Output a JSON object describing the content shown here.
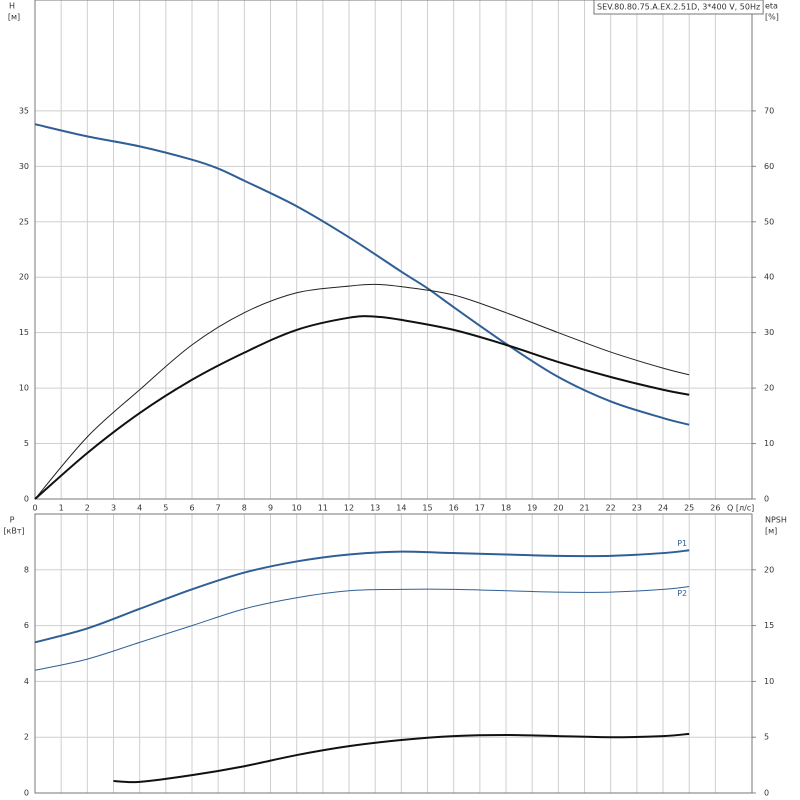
{
  "chart_data": [
    {
      "type": "line",
      "title": "SEV.80.80.75.A.EX.2.51D, 3*400 V, 50Hz",
      "ylabel": "H",
      "yunit": "[м]",
      "y2label": "eta",
      "y2unit": "[%]",
      "xlabel": "Q [л/с]",
      "xlim": [
        0,
        27.4
      ],
      "xticks": [
        0,
        1,
        2,
        3,
        4,
        5,
        6,
        7,
        8,
        9,
        10,
        11,
        12,
        13,
        14,
        15,
        16,
        17,
        18,
        19,
        20,
        21,
        22,
        23,
        24,
        25,
        26
      ],
      "ylim": [
        0,
        45
      ],
      "yticks": [
        0,
        5,
        10,
        15,
        20,
        25,
        30,
        35
      ],
      "y2lim": [
        0,
        90
      ],
      "y2ticks": [
        0,
        10,
        20,
        30,
        40,
        50,
        60,
        70
      ],
      "grid": true,
      "show_xtick_labels": true,
      "series": [
        {
          "color": "#2f5f96",
          "line_width": 2,
          "x": [
            0,
            2,
            4,
            6,
            7,
            8,
            10,
            12,
            14,
            15,
            16,
            18,
            20,
            22,
            24,
            25
          ],
          "values": [
            33.8,
            32.7,
            31.8,
            30.6,
            29.8,
            28.7,
            26.4,
            23.6,
            20.5,
            19,
            17.3,
            14,
            11,
            8.8,
            7.3,
            6.7
          ]
        },
        {
          "color": "#222222",
          "line_width": 1,
          "axis": "y2",
          "x": [
            0,
            2,
            4,
            6,
            8,
            10,
            12,
            13,
            14,
            16,
            18,
            20,
            22,
            24,
            25
          ],
          "values": [
            0,
            11.2,
            19.7,
            27.8,
            33.6,
            37.2,
            38.4,
            38.7,
            38.3,
            36.8,
            33.6,
            30,
            26.5,
            23.6,
            22.4
          ]
        },
        {
          "color": "#111111",
          "line_width": 2,
          "axis": "y2",
          "x": [
            0,
            2,
            4,
            6,
            8,
            10,
            12,
            13,
            14,
            16,
            18,
            20,
            22,
            24,
            25
          ],
          "values": [
            0,
            8.3,
            15.5,
            21.5,
            26.4,
            30.5,
            32.7,
            32.9,
            32.3,
            30.5,
            27.8,
            24.7,
            22,
            19.7,
            18.8
          ]
        }
      ]
    },
    {
      "type": "line",
      "ylabel": "P",
      "yunit": "[кВт]",
      "y2label": "NPSH",
      "y2unit": "[м]",
      "xlim": [
        0,
        27.4
      ],
      "xticks": [
        0,
        1,
        2,
        3,
        4,
        5,
        6,
        7,
        8,
        9,
        10,
        11,
        12,
        13,
        14,
        15,
        16,
        17,
        18,
        19,
        20,
        21,
        22,
        23,
        24,
        25,
        26
      ],
      "ylim": [
        0,
        10
      ],
      "yticks": [
        0,
        2,
        4,
        6,
        8
      ],
      "y2lim": [
        0,
        25
      ],
      "y2ticks": [
        0,
        5,
        10,
        15,
        20
      ],
      "grid": true,
      "show_xtick_labels": false,
      "series": [
        {
          "name": "P1",
          "color": "#2f5f96",
          "line_width": 2,
          "x": [
            0,
            2,
            4,
            6,
            8,
            10,
            12,
            14,
            16,
            18,
            20,
            22,
            24,
            25
          ],
          "values": [
            5.4,
            5.9,
            6.6,
            7.3,
            7.9,
            8.3,
            8.55,
            8.65,
            8.6,
            8.55,
            8.5,
            8.5,
            8.6,
            8.7
          ]
        },
        {
          "name": "P2",
          "color": "#2f5f96",
          "line_width": 1,
          "x": [
            0,
            2,
            4,
            6,
            8,
            10,
            12,
            14,
            16,
            18,
            20,
            22,
            24,
            25
          ],
          "values": [
            4.4,
            4.8,
            5.4,
            6.0,
            6.6,
            7.0,
            7.25,
            7.3,
            7.3,
            7.25,
            7.2,
            7.2,
            7.3,
            7.4
          ]
        },
        {
          "color": "#111111",
          "line_width": 2,
          "axis": "y2",
          "x": [
            3,
            4,
            6,
            8,
            10,
            12,
            14,
            16,
            18,
            20,
            22,
            24,
            25
          ],
          "values": [
            1.07,
            1.0,
            1.6,
            2.4,
            3.4,
            4.2,
            4.75,
            5.1,
            5.2,
            5.1,
            5.0,
            5.1,
            5.3
          ]
        }
      ]
    }
  ]
}
